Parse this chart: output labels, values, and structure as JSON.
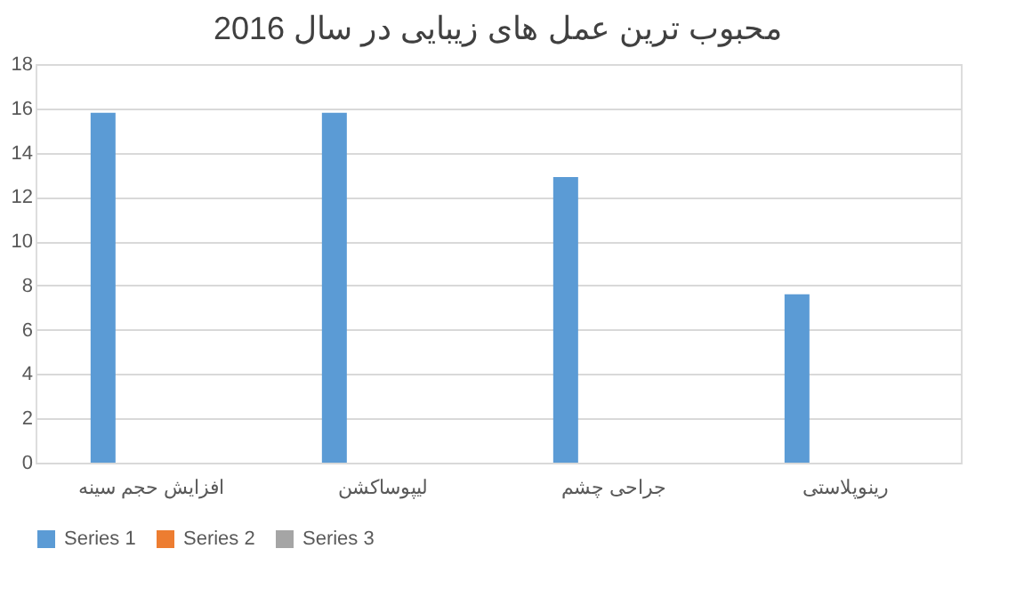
{
  "chart_data": {
    "type": "bar",
    "title": "محبوب ترین عمل های زیبایی در سال 2016",
    "categories": [
      "افزایش حجم سینه",
      "لیپوساکشن",
      "جراحی چشم",
      "رینوپلاستی"
    ],
    "series": [
      {
        "name": "Series 1",
        "color": "#5b9bd5",
        "values": [
          15.8,
          15.8,
          12.9,
          7.6
        ]
      },
      {
        "name": "Series 2",
        "color": "#ed7d31",
        "values": [
          null,
          null,
          null,
          null
        ]
      },
      {
        "name": "Series 3",
        "color": "#a5a5a5",
        "values": [
          null,
          null,
          null,
          null
        ]
      }
    ],
    "ylim": [
      0,
      18
    ],
    "yticks": [
      0,
      2,
      4,
      6,
      8,
      10,
      12,
      14,
      16,
      18
    ],
    "grid": "y",
    "legend": "bottom"
  }
}
